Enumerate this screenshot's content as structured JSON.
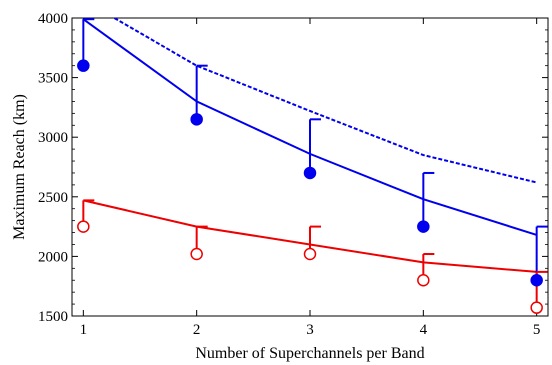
{
  "chart_data": {
    "type": "line",
    "xlabel": "Number of Superchannels per Band",
    "ylabel": "Maximum Reach (km)",
    "xlim": [
      0.9,
      5.1
    ],
    "ylim": [
      1500,
      4000
    ],
    "x_ticks": [
      1,
      2,
      3,
      4,
      5
    ],
    "y_ticks": [
      1500,
      2000,
      2500,
      3000,
      3500,
      4000
    ],
    "grid": false,
    "legend": "none",
    "series": [
      {
        "color": "#0000ee",
        "style": "dashed",
        "x": [
          1,
          2,
          3,
          4,
          5
        ],
        "y": [
          4150,
          3600,
          3220,
          2850,
          2620
        ]
      },
      {
        "color": "#0000ee",
        "style": "solid",
        "x": [
          1,
          2,
          3,
          4,
          5
        ],
        "y": [
          3990,
          3300,
          2860,
          2480,
          2180
        ]
      },
      {
        "color": "#ee0000",
        "style": "solid",
        "x": [
          1,
          2,
          3,
          4,
          5
        ],
        "y": [
          2470,
          2250,
          2100,
          1950,
          1870
        ]
      },
      {
        "color": "#0000ee",
        "style": "markers-filled",
        "x": [
          1,
          2,
          3,
          4,
          5
        ],
        "y": [
          3600,
          3150,
          2700,
          2250,
          1800
        ],
        "error_upper": [
          3990,
          3600,
          3150,
          2700,
          2250
        ]
      },
      {
        "color": "#ee0000",
        "style": "markers-open",
        "x": [
          1,
          2,
          3,
          4,
          5
        ],
        "y": [
          2250,
          2020,
          2020,
          1800,
          1570
        ],
        "error_upper": [
          2470,
          2250,
          2250,
          2020,
          1870
        ]
      }
    ]
  }
}
